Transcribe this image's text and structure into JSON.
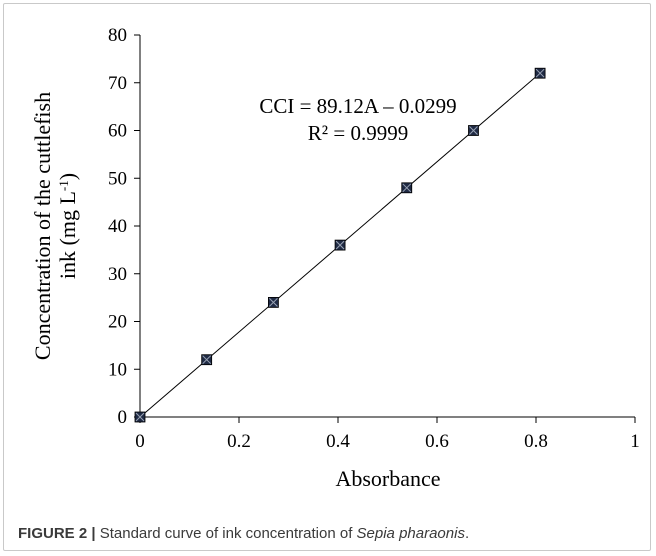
{
  "chart_data": {
    "type": "scatter",
    "x": [
      0,
      0.1347,
      0.2695,
      0.4042,
      0.5389,
      0.6737,
      0.8083
    ],
    "y": [
      0,
      12,
      24,
      36,
      48,
      60,
      72
    ],
    "trendline": {
      "type": "linear",
      "slope": 89.12,
      "intercept": -0.0299
    },
    "xlabel": "Absorbance",
    "ylabel_line1": "Concentration of the cuttlefish",
    "ylabel_line2": "ink (mg L",
    "ylabel_sup": "-1",
    "ylabel_end": ")",
    "xlim": [
      0,
      1
    ],
    "ylim": [
      0,
      80
    ],
    "xticks": [
      0,
      0.2,
      0.4,
      0.6,
      0.8,
      1
    ],
    "xtick_labels": [
      "0",
      "0.2",
      "0.4",
      "0.6",
      "0.8",
      "1"
    ],
    "yticks": [
      0,
      10,
      20,
      30,
      40,
      50,
      60,
      70,
      80
    ],
    "ytick_labels": [
      "0",
      "10",
      "20",
      "30",
      "40",
      "50",
      "60",
      "70",
      "80"
    ],
    "annotation_equation": "CCI = 89.12A – 0.0299",
    "annotation_r2": "R² = 0.9999",
    "grid": false,
    "marker_color": "#1f2a44",
    "line_color": "#000000"
  },
  "caption": {
    "label": "FIGURE 2 |",
    "text": " Standard curve of ink concentration of ",
    "species": "Sepia pharaonis",
    "end": "."
  }
}
